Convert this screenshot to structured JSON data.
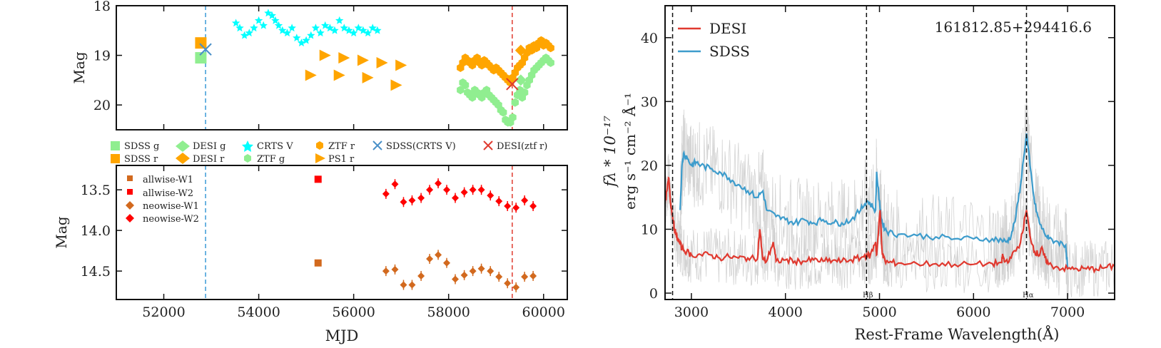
{
  "colors": {
    "sdss_g": "#90ee90",
    "sdss_r": "#ffa500",
    "desi_g": "#90ee90",
    "desi_r": "#ffa500",
    "crts_v": "#00ffff",
    "ztf_g": "#90ee90",
    "ztf_r": "#ffa500",
    "ps1_r": "#ffa500",
    "sdss_cross": "#4a90c8",
    "desi_cross": "#e03a2f",
    "allwise": "#d2691e",
    "neowise_w1": "#d2691e",
    "neowise_w2": "#ff0000",
    "spec_desi": "#e0392f",
    "spec_sdss": "#3d9ccc",
    "spec_raw": "#c8c8c8",
    "vline_sdss": "#3a9ad6",
    "vline_desi": "#e03a2f"
  },
  "chart_data": [
    {
      "type": "scatter",
      "id": "optical",
      "ylabel": "Mag",
      "xlim": [
        51000,
        60500
      ],
      "ylim": [
        20.5,
        18.0
      ],
      "yticks": [
        "18",
        "19",
        "20"
      ],
      "ytick_values": [
        18,
        19,
        20
      ],
      "vlines": [
        52880,
        59340
      ],
      "series": [
        {
          "name": "SDSS g",
          "marker": "square",
          "color": "#90ee90",
          "x": [
            52780
          ],
          "y": [
            19.05
          ]
        },
        {
          "name": "SDSS r",
          "marker": "square",
          "color": "#ffa500",
          "x": [
            52780
          ],
          "y": [
            18.75
          ]
        },
        {
          "name": "DESI g",
          "marker": "diamond",
          "color": "#90ee90",
          "x": [
            59520
          ],
          "y": [
            19.5
          ]
        },
        {
          "name": "DESI r",
          "marker": "diamond",
          "color": "#ffa500",
          "x": [
            59520
          ],
          "y": [
            18.9
          ]
        },
        {
          "name": "CRTS V",
          "marker": "star",
          "color": "#00ffff",
          "x": [
            53520,
            53600,
            53700,
            53800,
            53900,
            54000,
            54100,
            54200,
            54280,
            54350,
            54420,
            54500,
            54600,
            54700,
            54800,
            54900,
            55000,
            55100,
            55200,
            55300,
            55400,
            55500,
            55600,
            55700,
            55800,
            55900,
            56000,
            56100,
            56200,
            56300,
            56400,
            56500
          ],
          "y": [
            18.35,
            18.45,
            18.6,
            18.55,
            18.45,
            18.3,
            18.4,
            18.15,
            18.2,
            18.3,
            18.4,
            18.5,
            18.55,
            18.45,
            18.65,
            18.75,
            18.7,
            18.6,
            18.45,
            18.55,
            18.4,
            18.45,
            18.5,
            18.3,
            18.45,
            18.5,
            18.55,
            18.45,
            18.5,
            18.55,
            18.45,
            18.5
          ]
        },
        {
          "name": "ZTF g",
          "marker": "hex",
          "color": "#90ee90",
          "x": [
            58250,
            58300,
            58350,
            58400,
            58450,
            58500,
            58550,
            58600,
            58650,
            58700,
            58750,
            58800,
            58850,
            58900,
            58950,
            59000,
            59050,
            59100,
            59150,
            59200,
            59250,
            59300,
            59350,
            59400,
            59450,
            59500,
            59550,
            59600,
            59650,
            59700,
            59750,
            59800,
            59850,
            59900,
            59950,
            60000,
            60050,
            60100,
            60150
          ],
          "y": [
            19.7,
            19.55,
            19.6,
            19.75,
            19.8,
            19.85,
            19.7,
            19.75,
            19.8,
            19.85,
            19.75,
            19.7,
            19.8,
            19.85,
            19.9,
            19.95,
            20.0,
            20.1,
            20.15,
            20.3,
            20.35,
            20.35,
            20.25,
            19.95,
            19.8,
            19.7,
            19.85,
            19.75,
            19.6,
            19.5,
            19.4,
            19.3,
            19.25,
            19.2,
            19.15,
            19.1,
            19.05,
            19.1,
            19.15
          ]
        },
        {
          "name": "ZTF r",
          "marker": "hex",
          "color": "#ffa500",
          "x": [
            58250,
            58300,
            58350,
            58400,
            58450,
            58500,
            58550,
            58600,
            58650,
            58700,
            58750,
            58800,
            58850,
            58900,
            58950,
            59000,
            59050,
            59100,
            59150,
            59200,
            59250,
            59300,
            59350,
            59400,
            59450,
            59500,
            59550,
            59600,
            59650,
            59700,
            59750,
            59800,
            59850,
            59900,
            59950,
            60000,
            60050,
            60100,
            60150
          ],
          "y": [
            19.25,
            19.15,
            19.05,
            19.1,
            19.15,
            19.2,
            19.1,
            19.05,
            19.15,
            19.2,
            19.1,
            19.15,
            19.2,
            19.25,
            19.3,
            19.25,
            19.3,
            19.35,
            19.4,
            19.45,
            19.5,
            19.55,
            19.45,
            19.35,
            19.25,
            19.2,
            19.15,
            19.05,
            18.95,
            18.85,
            18.9,
            18.8,
            18.85,
            18.75,
            18.7,
            18.8,
            18.75,
            18.8,
            18.85
          ]
        },
        {
          "name": "PS1 r",
          "marker": "triangle",
          "color": "#ffa500",
          "x": [
            55400,
            55800,
            56200,
            56600,
            57000,
            55100,
            55700,
            56300,
            56900
          ],
          "y": [
            19.0,
            19.05,
            19.1,
            19.15,
            19.2,
            19.4,
            19.4,
            19.45,
            19.6
          ]
        },
        {
          "name": "SDSS(CRTS V)",
          "marker": "x",
          "color": "#4a90c8",
          "x": [
            52880
          ],
          "y": [
            18.88
          ]
        },
        {
          "name": "DESI(ztf r)",
          "marker": "x",
          "color": "#e03a2f",
          "x": [
            59340
          ],
          "y": [
            19.58
          ]
        }
      ]
    },
    {
      "type": "scatter",
      "id": "wise",
      "ylabel": "Mag",
      "xlabel": "MJD",
      "xlim": [
        51000,
        60500
      ],
      "ylim": [
        14.85,
        13.2
      ],
      "xticks": [
        "52000",
        "54000",
        "56000",
        "58000",
        "60000"
      ],
      "xtick_values": [
        52000,
        54000,
        56000,
        58000,
        60000
      ],
      "yticks": [
        "13.5",
        "14.0",
        "14.5"
      ],
      "ytick_values": [
        13.5,
        14.0,
        14.5
      ],
      "vlines": [
        52880,
        59340
      ],
      "series": [
        {
          "name": "allwise-W1",
          "marker": "square",
          "color": "#d2691e",
          "x": [
            55250
          ],
          "y": [
            14.4
          ]
        },
        {
          "name": "allwise-W2",
          "marker": "square",
          "color": "#ff0000",
          "x": [
            55250
          ],
          "y": [
            13.37
          ]
        },
        {
          "name": "neowise-W1",
          "marker": "diamond",
          "color": "#d2691e",
          "x": [
            56680,
            56870,
            57050,
            57230,
            57420,
            57600,
            57780,
            57960,
            58140,
            58330,
            58510,
            58690,
            58880,
            59060,
            59240,
            59420,
            59600,
            59780
          ],
          "y": [
            14.5,
            14.48,
            14.67,
            14.67,
            14.56,
            14.35,
            14.3,
            14.4,
            14.6,
            14.55,
            14.5,
            14.47,
            14.5,
            14.57,
            14.65,
            14.7,
            14.57,
            14.56
          ]
        },
        {
          "name": "neowise-W2",
          "marker": "diamond",
          "color": "#ff0000",
          "x": [
            56680,
            56870,
            57050,
            57230,
            57420,
            57600,
            57780,
            57960,
            58140,
            58330,
            58510,
            58690,
            58880,
            59060,
            59240,
            59420,
            59600,
            59780
          ],
          "y": [
            13.55,
            13.43,
            13.65,
            13.63,
            13.6,
            13.5,
            13.42,
            13.5,
            13.6,
            13.53,
            13.5,
            13.5,
            13.57,
            13.64,
            13.7,
            13.72,
            13.63,
            13.7
          ]
        }
      ]
    },
    {
      "type": "line",
      "id": "spectrum",
      "title": "161812.85+294416.6",
      "xlabel": "Rest-Frame Wavelength(Å)",
      "ylabel_line1": "fλ * 10⁻¹⁷",
      "ylabel_line2": "erg s⁻¹ cm⁻² Å⁻¹",
      "xlim": [
        2720,
        7500
      ],
      "ylim": [
        -1,
        45
      ],
      "xticks": [
        "3000",
        "4000",
        "5000",
        "6000",
        "7000"
      ],
      "xtick_values": [
        3000,
        4000,
        5000,
        6000,
        7000
      ],
      "yticks": [
        "0",
        "10",
        "20",
        "30",
        "40"
      ],
      "ytick_values": [
        0,
        10,
        20,
        30,
        40
      ],
      "vlines": [
        2800,
        4862,
        6563
      ],
      "line_labels": [
        "Hβ",
        "Hα"
      ],
      "series": [
        {
          "name": "DESI",
          "color": "#e0392f",
          "x": [
            2720,
            2740,
            2760,
            2780,
            2800,
            2820,
            2840,
            2870,
            2900,
            2950,
            3000,
            3100,
            3200,
            3300,
            3400,
            3500,
            3600,
            3700,
            3727,
            3760,
            3800,
            3870,
            3900,
            4000,
            4100,
            4200,
            4300,
            4400,
            4500,
            4600,
            4700,
            4800,
            4862,
            4900,
            4959,
            4970,
            5007,
            5030,
            5060,
            5100,
            5200,
            5400,
            5600,
            5800,
            6000,
            6200,
            6300,
            6310,
            6330,
            6400,
            6500,
            6563,
            6600,
            6650,
            6700,
            6720,
            6760,
            6800,
            6900,
            7000,
            7100,
            7200,
            7300,
            7400,
            7500
          ],
          "y": [
            14,
            16,
            18,
            14,
            12,
            10,
            9,
            8,
            7,
            6.5,
            6,
            6,
            6,
            5.5,
            5.7,
            5.5,
            5.5,
            5.3,
            10,
            5.2,
            5,
            8,
            5,
            5.2,
            5,
            5,
            5.2,
            5,
            5.1,
            5,
            5.2,
            5.5,
            6,
            5.8,
            8,
            6,
            13,
            6,
            5,
            4.8,
            4.7,
            4.6,
            4.6,
            4.5,
            4.5,
            4.6,
            4.8,
            6,
            4.9,
            5.5,
            8,
            13,
            9,
            6.5,
            6,
            7,
            5.5,
            4.5,
            4,
            3.8,
            3.8,
            3.8,
            3.8,
            4,
            4.2
          ]
        },
        {
          "name": "SDSS",
          "color": "#3d9ccc",
          "x": [
            2880,
            2900,
            2920,
            2960,
            3000,
            3050,
            3100,
            3200,
            3300,
            3400,
            3500,
            3600,
            3700,
            3760,
            3800,
            3900,
            4000,
            4100,
            4200,
            4300,
            4400,
            4500,
            4600,
            4700,
            4800,
            4862,
            4900,
            4959,
            4970,
            5007,
            5030,
            5060,
            5100,
            5200,
            5400,
            5600,
            5800,
            6000,
            6200,
            6300,
            6350,
            6400,
            6450,
            6500,
            6563,
            6600,
            6650,
            6700,
            6750,
            6800,
            6900,
            6980,
            7000
          ],
          "y": [
            13,
            20,
            22,
            21,
            20,
            20.5,
            20,
            19.5,
            19,
            18,
            17,
            16,
            15,
            16,
            13,
            12,
            11.5,
            11,
            11.5,
            11,
            11.5,
            11,
            11,
            11.5,
            13,
            14.5,
            14,
            13,
            19,
            13,
            11,
            10,
            9.5,
            9.2,
            9,
            8.8,
            8.5,
            8.5,
            8.5,
            8.3,
            8,
            9,
            12,
            17,
            25,
            20,
            14,
            11,
            9.5,
            8.5,
            8,
            7.5,
            4
          ]
        }
      ]
    }
  ],
  "legend_optical": [
    "SDSS g",
    "SDSS r",
    "DESI g",
    "DESI r",
    "CRTS V",
    "ZTF g",
    "ZTF r",
    "PS1 r",
    "SDSS(CRTS V)",
    "DESI(ztf r)"
  ],
  "legend_wise": [
    "allwise-W1",
    "allwise-W2",
    "neowise-W1",
    "neowise-W2"
  ],
  "legend_spectrum": [
    "DESI",
    "SDSS"
  ]
}
